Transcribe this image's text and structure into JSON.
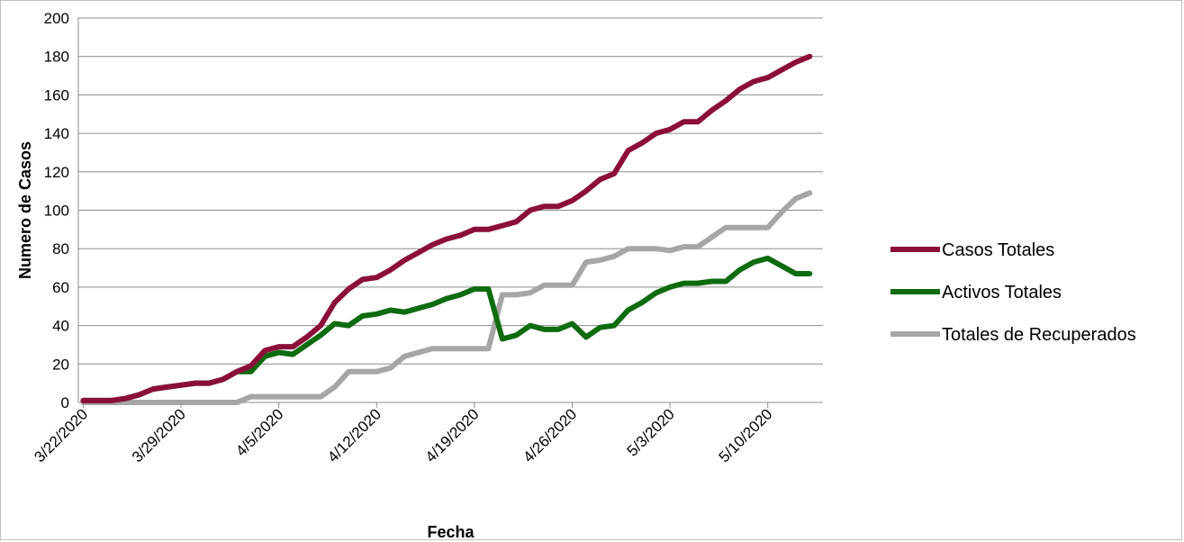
{
  "chart_data": {
    "type": "line",
    "title": "",
    "xlabel": "Fecha",
    "ylabel": "Numero de Casos",
    "ylim": [
      0,
      200
    ],
    "yticks": [
      0,
      20,
      40,
      60,
      80,
      100,
      120,
      140,
      160,
      180,
      200
    ],
    "x_start": "3/22/2020",
    "x_end": "5/15/2020",
    "xtick_labels": [
      "3/22/2020",
      "3/29/2020",
      "4/5/2020",
      "4/12/2020",
      "4/19/2020",
      "4/26/2020",
      "5/3/2020",
      "5/10/2020"
    ],
    "grid": "horizontal",
    "legend_position": "right",
    "series": [
      {
        "name": "Casos Totales",
        "color": "#8b0e3a",
        "values": [
          1,
          1,
          1,
          2,
          4,
          7,
          8,
          9,
          10,
          10,
          12,
          16,
          19,
          27,
          29,
          29,
          34,
          40,
          52,
          59,
          64,
          65,
          69,
          74,
          78,
          82,
          85,
          87,
          90,
          90,
          92,
          94,
          100,
          102,
          102,
          105,
          110,
          116,
          119,
          131,
          135,
          140,
          142,
          146,
          146,
          152,
          157,
          163,
          167,
          169,
          173,
          177,
          180
        ]
      },
      {
        "name": "Activos Totales",
        "color": "#0e6b0e",
        "values": [
          1,
          1,
          1,
          2,
          4,
          7,
          8,
          9,
          10,
          10,
          12,
          16,
          16,
          24,
          26,
          25,
          30,
          35,
          41,
          40,
          45,
          46,
          48,
          47,
          49,
          51,
          54,
          56,
          59,
          59,
          33,
          35,
          40,
          38,
          38,
          41,
          34,
          39,
          40,
          48,
          52,
          57,
          60,
          62,
          62,
          63,
          63,
          69,
          73,
          75,
          71,
          67,
          67
        ]
      },
      {
        "name": "Totales de Recuperados",
        "color": "#a6a6a6",
        "values": [
          0,
          0,
          0,
          0,
          0,
          0,
          0,
          0,
          0,
          0,
          0,
          0,
          3,
          3,
          3,
          3,
          3,
          3,
          8,
          16,
          16,
          16,
          18,
          24,
          26,
          28,
          28,
          28,
          28,
          28,
          56,
          56,
          57,
          61,
          61,
          61,
          73,
          74,
          76,
          80,
          80,
          80,
          79,
          81,
          81,
          86,
          91,
          91,
          91,
          91,
          99,
          106,
          109
        ]
      }
    ]
  }
}
